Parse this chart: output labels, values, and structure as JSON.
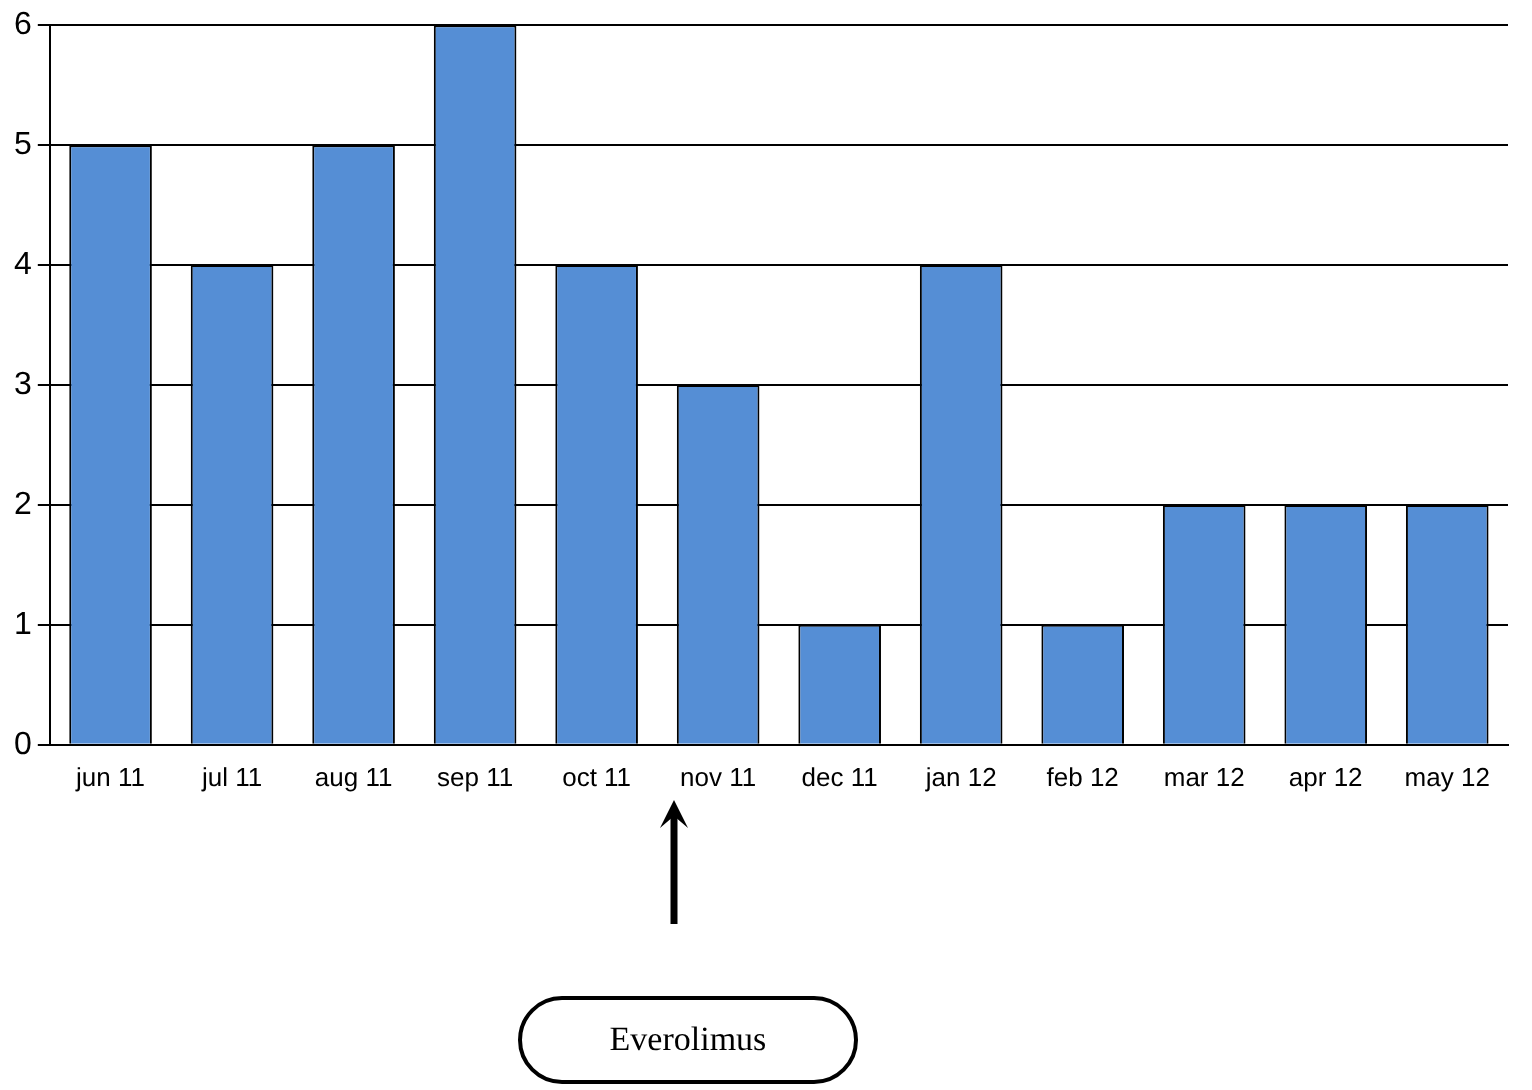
{
  "chart_data": {
    "type": "bar",
    "categories": [
      "jun 11",
      "jul 11",
      "aug 11",
      "sep 11",
      "oct 11",
      "nov 11",
      "dec 11",
      "jan 12",
      "feb 12",
      "mar 12",
      "apr 12",
      "may 12"
    ],
    "values": [
      5,
      4,
      5,
      6,
      4,
      3,
      1,
      4,
      1,
      2,
      2,
      2
    ],
    "color": "#558ed5",
    "ylim": [
      0,
      6
    ],
    "yticks": [
      0,
      1,
      2,
      3,
      4,
      5,
      6
    ],
    "grid": "y",
    "legend": false,
    "annotations": [
      "Everolimus"
    ]
  }
}
